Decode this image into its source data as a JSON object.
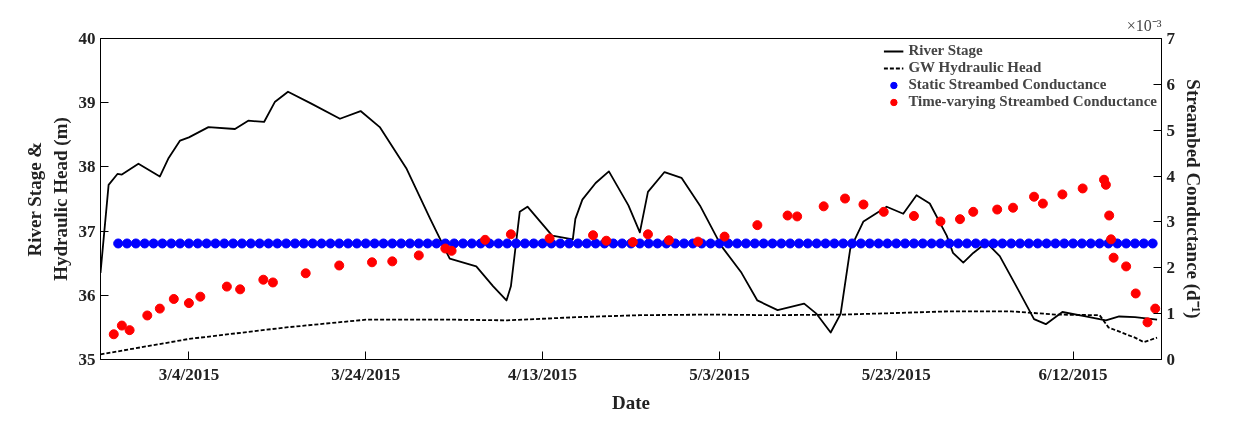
{
  "chart_data": {
    "type": "line",
    "xlabel": "Date",
    "ylabel": "River Stage & Hydraulic Head (m)",
    "y2label": "Streambed Conductance (d⁻¹)",
    "annotations": [
      "×10⁻³"
    ],
    "xlim": [
      "2015-02-22",
      "2015-06-22"
    ],
    "xticks": [
      {
        "value": "2015-03-04",
        "label": "3/4/2015"
      },
      {
        "value": "2015-03-24",
        "label": "3/24/2015"
      },
      {
        "value": "2015-04-13",
        "label": "4/13/2015"
      },
      {
        "value": "2015-05-03",
        "label": "5/3/2015"
      },
      {
        "value": "2015-05-23",
        "label": "5/23/2015"
      },
      {
        "value": "2015-06-12",
        "label": "6/12/2015"
      }
    ],
    "ylim": [
      35,
      40
    ],
    "yticks": [
      35,
      36,
      37,
      38,
      39,
      40
    ],
    "y2lim": [
      0,
      7
    ],
    "y2ticks": [
      0,
      1,
      2,
      3,
      4,
      5,
      6,
      7
    ],
    "grid": false,
    "legend": "top right",
    "series": [
      {
        "name": "River Stage",
        "line_style": "solid",
        "color": "#000000",
        "x": [
          "2015-02-22",
          "2015-02-22T22:00",
          "2015-02-23T22:00",
          "2015-02-24T10:00",
          "2015-02-26T07:00",
          "2015-02-28T17:00",
          "2015-03-01T17:00",
          "2015-03-03",
          "2015-03-04",
          "2015-03-06T05:00",
          "2015-03-09T05:00",
          "2015-03-10T17:00",
          "2015-03-12T12:00",
          "2015-03-13T17:00",
          "2015-03-15T05:00",
          "2015-03-17T19:00",
          "2015-03-21T02:00",
          "2015-03-23T10:00",
          "2015-03-25T14:00",
          "2015-03-28T14:00",
          "2015-03-31T07:00",
          "2015-04-02T12:00",
          "2015-04-05T12:00",
          "2015-04-07T10:00",
          "2015-04-08T22:00",
          "2015-04-09T10:00",
          "2015-04-10T10:00",
          "2015-04-11T07:00",
          "2015-04-14T02:00",
          "2015-04-16T10:00",
          "2015-04-16T17:00",
          "2015-04-17T12:00",
          "2015-04-19",
          "2015-04-20T12:00",
          "2015-04-22T17:00",
          "2015-04-24",
          "2015-04-24T22:00",
          "2015-04-26T19:00",
          "2015-04-28T17:00",
          "2015-04-30T19:00",
          "2015-05-03T05:00",
          "2015-05-05T12:00",
          "2015-05-07T07:00",
          "2015-05-09T14:00",
          "2015-05-12T14:00",
          "2015-05-14",
          "2015-05-15T14:00",
          "2015-05-16T17:00",
          "2015-05-17T19:00",
          "2015-05-19T07:00",
          "2015-05-21T22:00",
          "2015-05-23T19:00",
          "2015-05-25T07:00",
          "2015-05-26T19:00",
          "2015-05-28T17:00",
          "2015-05-29T10:00",
          "2015-05-30T14:00",
          "2015-05-31T17:00",
          "2015-06-02T05:00",
          "2015-06-03T17:00",
          "2015-06-05T14:00",
          "2015-06-07T14:00",
          "2015-06-08T22:00",
          "2015-06-10T19:00",
          "2015-06-13T10:00",
          "2015-06-15T17:00",
          "2015-06-17T05:00",
          "2015-06-19",
          "2015-06-21T12:00"
        ],
        "values": [
          36.35,
          37.72,
          37.89,
          37.88,
          38.05,
          37.85,
          38.14,
          38.41,
          38.46,
          38.62,
          38.59,
          38.72,
          38.7,
          39.01,
          39.17,
          38.99,
          38.75,
          38.87,
          38.62,
          37.98,
          37.19,
          36.57,
          36.45,
          36.14,
          35.92,
          36.14,
          37.3,
          37.38,
          36.93,
          36.87,
          37.19,
          37.49,
          37.75,
          37.93,
          37.4,
          36.98,
          37.61,
          37.92,
          37.83,
          37.4,
          36.77,
          36.35,
          35.92,
          35.77,
          35.87,
          35.71,
          35.42,
          35.71,
          36.72,
          37.15,
          37.38,
          37.27,
          37.56,
          37.43,
          36.93,
          36.66,
          36.51,
          36.66,
          36.82,
          36.61,
          36.14,
          35.63,
          35.55,
          35.74,
          35.67,
          35.61,
          35.67,
          35.66,
          35.62
        ]
      },
      {
        "name": "GW Hydraulic Head",
        "line_style": "dashed",
        "color": "#000000",
        "x": [
          "2015-02-22",
          "2015-03-04",
          "2015-03-15",
          "2015-03-24",
          "2015-04-03",
          "2015-04-09",
          "2015-04-17",
          "2015-04-24",
          "2015-05-02",
          "2015-05-09",
          "2015-05-17",
          "2015-05-22",
          "2015-05-29",
          "2015-06-05",
          "2015-06-10",
          "2015-06-15",
          "2015-06-16",
          "2015-06-19",
          "2015-06-20",
          "2015-06-21T12:00"
        ],
        "values": [
          35.08,
          35.32,
          35.5,
          35.62,
          35.62,
          35.61,
          35.66,
          35.69,
          35.7,
          35.69,
          35.7,
          35.72,
          35.75,
          35.75,
          35.7,
          35.69,
          35.5,
          35.34,
          35.27,
          35.34
        ]
      },
      {
        "name": "Static Streambed Conductance",
        "type": "scatter",
        "marker": "circle",
        "axis": "y2",
        "color": "#0000ff",
        "x": [
          "2015-02-24",
          "2015-02-25",
          "2015-02-26",
          "2015-02-27",
          "2015-02-28",
          "2015-03-01",
          "2015-03-02",
          "2015-03-03",
          "2015-03-04",
          "2015-03-05",
          "2015-03-06",
          "2015-03-07",
          "2015-03-08",
          "2015-03-09",
          "2015-03-10",
          "2015-03-11",
          "2015-03-12",
          "2015-03-13",
          "2015-03-14",
          "2015-03-15",
          "2015-03-16",
          "2015-03-17",
          "2015-03-18",
          "2015-03-19",
          "2015-03-20",
          "2015-03-21",
          "2015-03-22",
          "2015-03-23",
          "2015-03-24",
          "2015-03-25",
          "2015-03-26",
          "2015-03-27",
          "2015-03-28",
          "2015-03-29",
          "2015-03-30",
          "2015-03-31",
          "2015-04-01",
          "2015-04-02",
          "2015-04-03",
          "2015-04-04",
          "2015-04-05",
          "2015-04-06",
          "2015-04-07",
          "2015-04-08",
          "2015-04-09",
          "2015-04-10",
          "2015-04-11",
          "2015-04-12",
          "2015-04-13",
          "2015-04-14",
          "2015-04-15",
          "2015-04-16",
          "2015-04-17",
          "2015-04-18",
          "2015-04-19",
          "2015-04-20",
          "2015-04-21",
          "2015-04-22",
          "2015-04-23",
          "2015-04-24",
          "2015-04-25",
          "2015-04-26",
          "2015-04-27",
          "2015-04-28",
          "2015-04-29",
          "2015-04-30",
          "2015-05-01",
          "2015-05-02",
          "2015-05-03",
          "2015-05-04",
          "2015-05-05",
          "2015-05-06",
          "2015-05-07",
          "2015-05-08",
          "2015-05-09",
          "2015-05-10",
          "2015-05-11",
          "2015-05-12",
          "2015-05-13",
          "2015-05-14",
          "2015-05-15",
          "2015-05-16",
          "2015-05-17",
          "2015-05-18",
          "2015-05-19",
          "2015-05-20",
          "2015-05-21",
          "2015-05-22",
          "2015-05-23",
          "2015-05-24",
          "2015-05-25",
          "2015-05-26",
          "2015-05-27",
          "2015-05-28",
          "2015-05-29",
          "2015-05-30",
          "2015-05-31",
          "2015-06-01",
          "2015-06-02",
          "2015-06-03",
          "2015-06-04",
          "2015-06-05",
          "2015-06-06",
          "2015-06-07",
          "2015-06-08",
          "2015-06-09",
          "2015-06-10",
          "2015-06-11",
          "2015-06-12",
          "2015-06-13",
          "2015-06-14",
          "2015-06-15",
          "2015-06-16",
          "2015-06-17",
          "2015-06-18",
          "2015-06-19",
          "2015-06-20",
          "2015-06-21"
        ],
        "values": [
          2.53,
          2.53,
          2.53,
          2.53,
          2.53,
          2.53,
          2.53,
          2.53,
          2.53,
          2.53,
          2.53,
          2.53,
          2.53,
          2.53,
          2.53,
          2.53,
          2.53,
          2.53,
          2.53,
          2.53,
          2.53,
          2.53,
          2.53,
          2.53,
          2.53,
          2.53,
          2.53,
          2.53,
          2.53,
          2.53,
          2.53,
          2.53,
          2.53,
          2.53,
          2.53,
          2.53,
          2.53,
          2.53,
          2.53,
          2.53,
          2.53,
          2.53,
          2.53,
          2.53,
          2.53,
          2.53,
          2.53,
          2.53,
          2.53,
          2.53,
          2.53,
          2.53,
          2.53,
          2.53,
          2.53,
          2.53,
          2.53,
          2.53,
          2.53,
          2.53,
          2.53,
          2.53,
          2.53,
          2.53,
          2.53,
          2.53,
          2.53,
          2.53,
          2.53,
          2.53,
          2.53,
          2.53,
          2.53,
          2.53,
          2.53,
          2.53,
          2.53,
          2.53,
          2.53,
          2.53,
          2.53,
          2.53,
          2.53,
          2.53,
          2.53,
          2.53,
          2.53,
          2.53,
          2.53,
          2.53,
          2.53,
          2.53,
          2.53,
          2.53,
          2.53,
          2.53,
          2.53,
          2.53,
          2.53,
          2.53,
          2.53,
          2.53,
          2.53,
          2.53,
          2.53,
          2.53,
          2.53,
          2.53,
          2.53,
          2.53,
          2.53,
          2.53,
          2.53,
          2.53,
          2.53,
          2.53,
          2.53,
          2.53
        ]
      },
      {
        "name": "Time-varying Streambed Conductance",
        "type": "scatter",
        "marker": "circle",
        "axis": "y2",
        "color": "#ff0000",
        "x": [
          "2015-02-23T12:00",
          "2015-02-24T10:00",
          "2015-02-25T07:00",
          "2015-02-27T07:00",
          "2015-02-28T17:00",
          "2015-03-02T07:00",
          "2015-03-04",
          "2015-03-05T07:00",
          "2015-03-08T07:00",
          "2015-03-09T19:00",
          "2015-03-12T10:00",
          "2015-03-13T12:00",
          "2015-03-17T05:00",
          "2015-03-21",
          "2015-03-24T17:00",
          "2015-03-27",
          "2015-03-30",
          "2015-04-02",
          "2015-04-02T17:00",
          "2015-04-06T12:00",
          "2015-04-09T10:00",
          "2015-04-13T19:00",
          "2015-04-18T17:00",
          "2015-04-20T05:00",
          "2015-04-23T05:00",
          "2015-04-24T22:00",
          "2015-04-27T07:00",
          "2015-04-30T14:00",
          "2015-05-03T14:00",
          "2015-05-07T07:00",
          "2015-05-10T17:00",
          "2015-05-11T19:00",
          "2015-05-14T19:00",
          "2015-05-17T05:00",
          "2015-05-19T07:00",
          "2015-05-21T14:00",
          "2015-05-25",
          "2015-05-28",
          "2015-05-30T05:00",
          "2015-05-31T17:00",
          "2015-06-03T10:00",
          "2015-06-05T05:00",
          "2015-06-07T14:00",
          "2015-06-08T14:00",
          "2015-06-10T19:00",
          "2015-06-13T02:00",
          "2015-06-15T12:00",
          "2015-06-15T17:00",
          "2015-06-16T02:00",
          "2015-06-16T07:00",
          "2015-06-16T14:00",
          "2015-06-18",
          "2015-06-19T02:00",
          "2015-06-20T10:00",
          "2015-06-21T07:00"
        ],
        "values": [
          0.55,
          0.74,
          0.64,
          0.96,
          1.11,
          1.32,
          1.23,
          1.37,
          1.59,
          1.53,
          1.74,
          1.68,
          1.88,
          2.05,
          2.12,
          2.14,
          2.27,
          2.42,
          2.37,
          2.61,
          2.73,
          2.64,
          2.71,
          2.59,
          2.56,
          2.73,
          2.6,
          2.57,
          2.68,
          2.93,
          3.14,
          3.12,
          3.34,
          3.51,
          3.38,
          3.22,
          3.13,
          3.01,
          3.06,
          3.22,
          3.27,
          3.31,
          3.55,
          3.4,
          3.6,
          3.73,
          3.92,
          3.81,
          3.14,
          2.62,
          2.22,
          2.03,
          1.44,
          0.81,
          1.11
        ]
      }
    ]
  }
}
